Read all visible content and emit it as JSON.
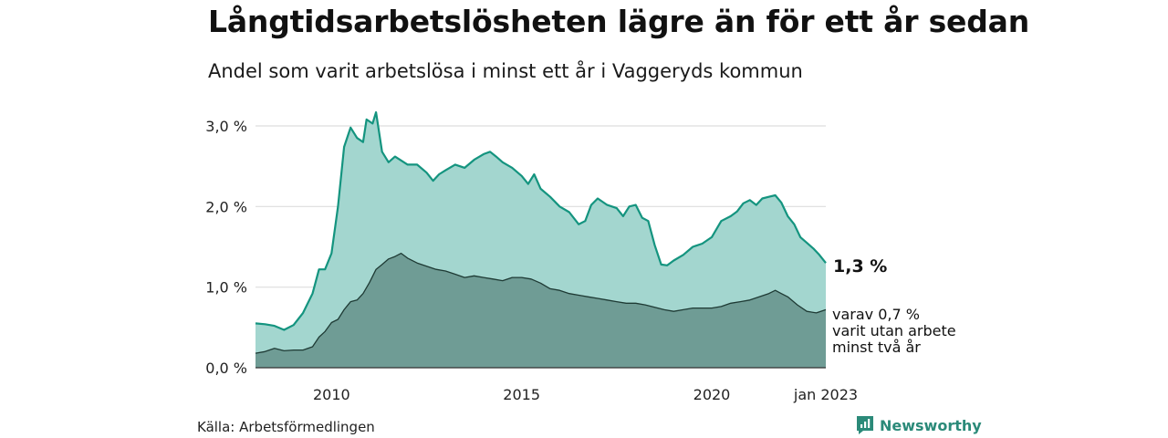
{
  "title": "Långtidsarbetslösheten lägre än för ett år sedan",
  "subtitle": "Andel som varit arbetslösa i minst ett år i Vaggeryds kommun",
  "source": "Källa: Arbetsförmedlingen",
  "brand": {
    "name": "Newsworthy",
    "icon": "newsworthy-logo-icon"
  },
  "colors": {
    "total_line": "#14947f",
    "total_fill": "#a3d6cf",
    "longterm_line": "#1e3a34",
    "longterm_fill": "#6f9c95",
    "grid": "#dddddd",
    "brand": "#2b8a79"
  },
  "chart_data": {
    "type": "area",
    "title": "Långtidsarbetslösheten lägre än för ett år sedan",
    "subtitle": "Andel som varit arbetslösa i minst ett år i Vaggeryds kommun",
    "xlabel": "",
    "ylabel": "",
    "x_range": [
      2008.0,
      2023.0
    ],
    "ylim": [
      0,
      3.0
    ],
    "y_ticks": [
      0,
      1.0,
      2.0,
      3.0
    ],
    "y_tick_labels": [
      "0,0 %",
      "1,0 %",
      "2,0 %",
      "3,0 %"
    ],
    "x_ticks": [
      2010,
      2015,
      2020,
      2023
    ],
    "x_tick_labels": [
      "2010",
      "2015",
      "2020",
      "jan 2023"
    ],
    "grid": true,
    "legend": "none",
    "series": [
      {
        "key": "total",
        "end_label": "1,3 %",
        "points": [
          [
            2008.0,
            0.55
          ],
          [
            2008.25,
            0.54
          ],
          [
            2008.5,
            0.52
          ],
          [
            2008.75,
            0.47
          ],
          [
            2009.0,
            0.53
          ],
          [
            2009.25,
            0.68
          ],
          [
            2009.5,
            0.92
          ],
          [
            2009.67,
            1.22
          ],
          [
            2009.83,
            1.22
          ],
          [
            2010.0,
            1.42
          ],
          [
            2010.17,
            2.0
          ],
          [
            2010.33,
            2.74
          ],
          [
            2010.5,
            2.98
          ],
          [
            2010.67,
            2.85
          ],
          [
            2010.83,
            2.8
          ],
          [
            2010.92,
            3.08
          ],
          [
            2011.08,
            3.03
          ],
          [
            2011.17,
            3.17
          ],
          [
            2011.33,
            2.68
          ],
          [
            2011.5,
            2.55
          ],
          [
            2011.67,
            2.62
          ],
          [
            2012.0,
            2.52
          ],
          [
            2012.25,
            2.52
          ],
          [
            2012.5,
            2.42
          ],
          [
            2012.67,
            2.32
          ],
          [
            2012.83,
            2.4
          ],
          [
            2013.0,
            2.45
          ],
          [
            2013.25,
            2.52
          ],
          [
            2013.5,
            2.48
          ],
          [
            2013.75,
            2.58
          ],
          [
            2014.0,
            2.65
          ],
          [
            2014.17,
            2.68
          ],
          [
            2014.33,
            2.62
          ],
          [
            2014.5,
            2.55
          ],
          [
            2014.75,
            2.48
          ],
          [
            2015.0,
            2.38
          ],
          [
            2015.17,
            2.28
          ],
          [
            2015.33,
            2.4
          ],
          [
            2015.5,
            2.22
          ],
          [
            2015.75,
            2.12
          ],
          [
            2016.0,
            2.0
          ],
          [
            2016.25,
            1.93
          ],
          [
            2016.5,
            1.78
          ],
          [
            2016.67,
            1.82
          ],
          [
            2016.83,
            2.02
          ],
          [
            2017.0,
            2.1
          ],
          [
            2017.25,
            2.02
          ],
          [
            2017.5,
            1.98
          ],
          [
            2017.67,
            1.88
          ],
          [
            2017.83,
            2.0
          ],
          [
            2018.0,
            2.02
          ],
          [
            2018.17,
            1.86
          ],
          [
            2018.33,
            1.82
          ],
          [
            2018.5,
            1.52
          ],
          [
            2018.67,
            1.28
          ],
          [
            2018.83,
            1.27
          ],
          [
            2019.0,
            1.33
          ],
          [
            2019.25,
            1.4
          ],
          [
            2019.5,
            1.5
          ],
          [
            2019.75,
            1.54
          ],
          [
            2020.0,
            1.62
          ],
          [
            2020.25,
            1.82
          ],
          [
            2020.5,
            1.88
          ],
          [
            2020.67,
            1.94
          ],
          [
            2020.83,
            2.04
          ],
          [
            2021.0,
            2.08
          ],
          [
            2021.17,
            2.02
          ],
          [
            2021.33,
            2.1
          ],
          [
            2021.5,
            2.12
          ],
          [
            2021.67,
            2.14
          ],
          [
            2021.83,
            2.05
          ],
          [
            2022.0,
            1.88
          ],
          [
            2022.17,
            1.78
          ],
          [
            2022.33,
            1.62
          ],
          [
            2022.5,
            1.55
          ],
          [
            2022.67,
            1.48
          ],
          [
            2022.83,
            1.4
          ],
          [
            2023.0,
            1.3
          ]
        ]
      },
      {
        "key": "longterm",
        "end_label": [
          "varav 0,7 %",
          "varit utan arbete",
          "minst två år"
        ],
        "points": [
          [
            2008.0,
            0.18
          ],
          [
            2008.25,
            0.2
          ],
          [
            2008.5,
            0.24
          ],
          [
            2008.75,
            0.21
          ],
          [
            2009.0,
            0.22
          ],
          [
            2009.25,
            0.22
          ],
          [
            2009.5,
            0.26
          ],
          [
            2009.67,
            0.38
          ],
          [
            2009.83,
            0.45
          ],
          [
            2010.0,
            0.56
          ],
          [
            2010.17,
            0.6
          ],
          [
            2010.33,
            0.72
          ],
          [
            2010.5,
            0.82
          ],
          [
            2010.67,
            0.84
          ],
          [
            2010.83,
            0.92
          ],
          [
            2011.0,
            1.06
          ],
          [
            2011.17,
            1.22
          ],
          [
            2011.33,
            1.28
          ],
          [
            2011.5,
            1.35
          ],
          [
            2011.67,
            1.38
          ],
          [
            2011.83,
            1.42
          ],
          [
            2012.0,
            1.36
          ],
          [
            2012.25,
            1.3
          ],
          [
            2012.5,
            1.26
          ],
          [
            2012.75,
            1.22
          ],
          [
            2013.0,
            1.2
          ],
          [
            2013.25,
            1.16
          ],
          [
            2013.5,
            1.12
          ],
          [
            2013.75,
            1.14
          ],
          [
            2014.0,
            1.12
          ],
          [
            2014.25,
            1.1
          ],
          [
            2014.5,
            1.08
          ],
          [
            2014.75,
            1.12
          ],
          [
            2015.0,
            1.12
          ],
          [
            2015.25,
            1.1
          ],
          [
            2015.5,
            1.05
          ],
          [
            2015.75,
            0.98
          ],
          [
            2016.0,
            0.96
          ],
          [
            2016.25,
            0.92
          ],
          [
            2016.5,
            0.9
          ],
          [
            2016.75,
            0.88
          ],
          [
            2017.0,
            0.86
          ],
          [
            2017.25,
            0.84
          ],
          [
            2017.5,
            0.82
          ],
          [
            2017.75,
            0.8
          ],
          [
            2018.0,
            0.8
          ],
          [
            2018.25,
            0.78
          ],
          [
            2018.5,
            0.75
          ],
          [
            2018.75,
            0.72
          ],
          [
            2019.0,
            0.7
          ],
          [
            2019.25,
            0.72
          ],
          [
            2019.5,
            0.74
          ],
          [
            2019.75,
            0.74
          ],
          [
            2020.0,
            0.74
          ],
          [
            2020.25,
            0.76
          ],
          [
            2020.5,
            0.8
          ],
          [
            2020.75,
            0.82
          ],
          [
            2021.0,
            0.84
          ],
          [
            2021.25,
            0.88
          ],
          [
            2021.5,
            0.92
          ],
          [
            2021.67,
            0.96
          ],
          [
            2021.83,
            0.92
          ],
          [
            2022.0,
            0.88
          ],
          [
            2022.25,
            0.78
          ],
          [
            2022.5,
            0.7
          ],
          [
            2022.75,
            0.68
          ],
          [
            2023.0,
            0.72
          ]
        ]
      }
    ]
  }
}
